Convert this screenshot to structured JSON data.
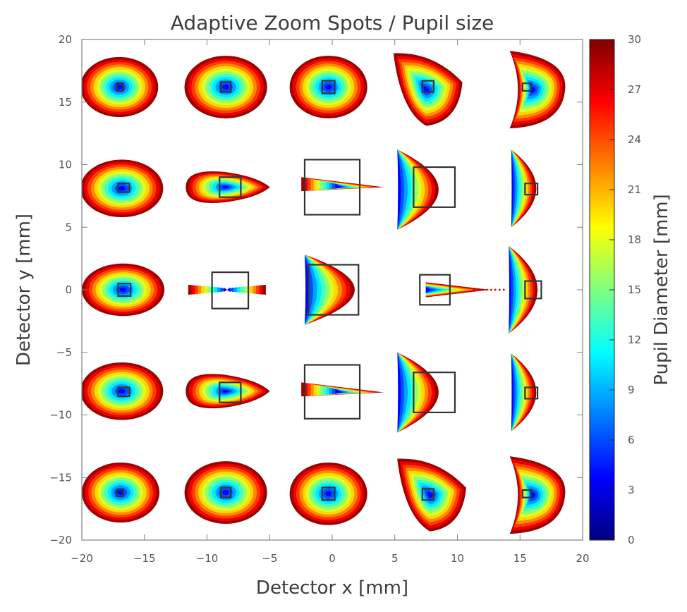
{
  "chart_data": {
    "type": "scatter",
    "title": "Adaptive Zoom Spots / Pupil size",
    "xlabel": "Detector x [mm]",
    "ylabel": "Detector y [mm]",
    "xlim": [
      -20,
      20
    ],
    "ylim": [
      -20,
      20
    ],
    "x_ticks": [
      -20,
      -15,
      -10,
      -5,
      0,
      5,
      10,
      15,
      20
    ],
    "x_tick_labels": [
      "−20",
      "−15",
      "−10",
      "−5",
      "0",
      "5",
      "10",
      "15",
      "20"
    ],
    "y_ticks": [
      -20,
      -15,
      -10,
      -5,
      0,
      5,
      10,
      15,
      20
    ],
    "y_tick_labels": [
      "−20",
      "−15",
      "−10",
      "−5",
      "0",
      "5",
      "10",
      "15",
      "20"
    ],
    "colorbar": {
      "label": "Pupil Diameter [mm]",
      "colormap": "jet",
      "range": [
        0,
        30
      ],
      "ticks": [
        0,
        3,
        6,
        9,
        12,
        15,
        18,
        21,
        24,
        27,
        30
      ],
      "tick_labels": [
        "0",
        "3",
        "6",
        "9",
        "12",
        "15",
        "18",
        "21",
        "24",
        "27",
        "30"
      ]
    },
    "spots": [
      {
        "row": 0,
        "col": 0,
        "cx": -17.0,
        "cy": 16.2,
        "shape": "ellipse",
        "rx": 3.1,
        "ry": 2.4,
        "box": [
          -17.2,
          15.9,
          0.5,
          0.6
        ]
      },
      {
        "row": 0,
        "col": 1,
        "cx": -8.5,
        "cy": 16.2,
        "shape": "ellipse",
        "rx": 3.3,
        "ry": 2.5,
        "box": [
          -8.9,
          15.8,
          0.8,
          0.8
        ]
      },
      {
        "row": 0,
        "col": 2,
        "cx": -0.3,
        "cy": 16.2,
        "shape": "ellipse",
        "rx": 3.1,
        "ry": 2.5,
        "box": [
          -0.8,
          15.7,
          1.0,
          1.0
        ]
      },
      {
        "row": 0,
        "col": 3,
        "cx": 7.5,
        "cy": 16.0,
        "shape": "skew",
        "rx": 2.9,
        "ry": 2.9,
        "box": [
          7.2,
          15.8,
          0.9,
          0.9
        ]
      },
      {
        "row": 0,
        "col": 4,
        "cx": 16.0,
        "cy": 16.0,
        "shape": "dshape",
        "rx": 2.6,
        "ry": 3.1,
        "box": [
          15.2,
          15.9,
          0.7,
          0.6
        ]
      },
      {
        "row": 1,
        "col": 0,
        "cx": -16.8,
        "cy": 8.1,
        "shape": "ellipse",
        "rx": 3.3,
        "ry": 2.3,
        "box": [
          -17.1,
          7.8,
          0.9,
          0.7
        ]
      },
      {
        "row": 1,
        "col": 1,
        "cx": -8.5,
        "cy": 8.2,
        "shape": "teardrop",
        "rx": 3.2,
        "ry": 1.2,
        "box": [
          -9.0,
          7.4,
          1.7,
          1.6
        ]
      },
      {
        "row": 1,
        "col": 2,
        "cx": 0.5,
        "cy": 8.2,
        "shape": "wedge",
        "rx": 3.3,
        "ry": 0.8,
        "box": [
          -2.2,
          6.0,
          4.4,
          4.4
        ]
      },
      {
        "row": 1,
        "col": 3,
        "cx": 8.5,
        "cy": 8.0,
        "shape": "fan",
        "rx": 3.3,
        "ry": 3.2,
        "box": [
          6.5,
          6.6,
          3.3,
          3.2
        ]
      },
      {
        "row": 1,
        "col": 4,
        "cx": 16.3,
        "cy": 8.1,
        "shape": "fan",
        "rx": 2.0,
        "ry": 3.1,
        "box": [
          15.4,
          7.6,
          1.0,
          0.9
        ]
      },
      {
        "row": 2,
        "col": 0,
        "cx": -16.7,
        "cy": 0.0,
        "shape": "ellipse",
        "rx": 3.3,
        "ry": 2.1,
        "box": [
          -17.1,
          -0.5,
          1.0,
          1.0
        ]
      },
      {
        "row": 2,
        "col": 1,
        "cx": -8.4,
        "cy": 0.0,
        "shape": "bowtie",
        "rx": 3.1,
        "ry": 0.4,
        "box": [
          -9.6,
          -1.5,
          2.9,
          2.9
        ]
      },
      {
        "row": 2,
        "col": 2,
        "cx": 1.8,
        "cy": 0.0,
        "shape": "fan",
        "rx": 4.0,
        "ry": 2.8,
        "box": [
          -1.9,
          -2.0,
          4.0,
          4.0
        ]
      },
      {
        "row": 2,
        "col": 3,
        "cx": 9.4,
        "cy": 0.0,
        "shape": "spike",
        "rx": 3.2,
        "ry": 0.3,
        "box": [
          7.0,
          -1.2,
          2.4,
          2.4
        ]
      },
      {
        "row": 2,
        "col": 4,
        "cx": 16.4,
        "cy": 0.0,
        "shape": "fan",
        "rx": 2.3,
        "ry": 3.5,
        "box": [
          15.4,
          -0.7,
          1.3,
          1.4
        ]
      },
      {
        "row": 3,
        "col": 0,
        "cx": -16.8,
        "cy": -8.1,
        "shape": "ellipse",
        "rx": 3.3,
        "ry": 2.3,
        "box": [
          -17.1,
          -8.5,
          0.9,
          0.7
        ]
      },
      {
        "row": 3,
        "col": 1,
        "cx": -8.5,
        "cy": -8.1,
        "shape": "teardrop",
        "rx": 3.2,
        "ry": 1.3,
        "box": [
          -9.0,
          -9.0,
          1.7,
          1.6
        ]
      },
      {
        "row": 3,
        "col": 2,
        "cx": 0.5,
        "cy": -8.2,
        "shape": "wedge",
        "rx": 3.3,
        "ry": 0.8,
        "box": [
          -2.2,
          -10.3,
          4.4,
          4.3
        ]
      },
      {
        "row": 3,
        "col": 3,
        "cx": 8.5,
        "cy": -8.2,
        "shape": "fan",
        "rx": 3.3,
        "ry": 3.2,
        "box": [
          6.5,
          -9.8,
          3.3,
          3.2
        ]
      },
      {
        "row": 3,
        "col": 4,
        "cx": 16.3,
        "cy": -8.2,
        "shape": "fan",
        "rx": 2.0,
        "ry": 3.1,
        "box": [
          15.4,
          -8.7,
          1.0,
          0.9
        ]
      },
      {
        "row": 4,
        "col": 0,
        "cx": -16.9,
        "cy": -16.2,
        "shape": "ellipse",
        "rx": 3.1,
        "ry": 2.4,
        "box": [
          -17.2,
          -16.5,
          0.5,
          0.5
        ]
      },
      {
        "row": 4,
        "col": 1,
        "cx": -8.5,
        "cy": -16.2,
        "shape": "ellipse",
        "rx": 3.3,
        "ry": 2.5,
        "box": [
          -8.9,
          -16.6,
          0.8,
          0.8
        ]
      },
      {
        "row": 4,
        "col": 2,
        "cx": -0.3,
        "cy": -16.3,
        "shape": "ellipse",
        "rx": 3.1,
        "ry": 2.5,
        "box": [
          -0.8,
          -16.8,
          1.0,
          1.0
        ]
      },
      {
        "row": 4,
        "col": 3,
        "cx": 7.8,
        "cy": -16.4,
        "shape": "skew",
        "rx": 2.9,
        "ry": 2.9,
        "box": [
          7.2,
          -16.8,
          0.9,
          0.9
        ]
      },
      {
        "row": 4,
        "col": 4,
        "cx": 16.0,
        "cy": -16.4,
        "shape": "dshape",
        "rx": 2.6,
        "ry": 3.1,
        "box": [
          15.2,
          -16.6,
          0.7,
          0.6
        ]
      }
    ]
  }
}
